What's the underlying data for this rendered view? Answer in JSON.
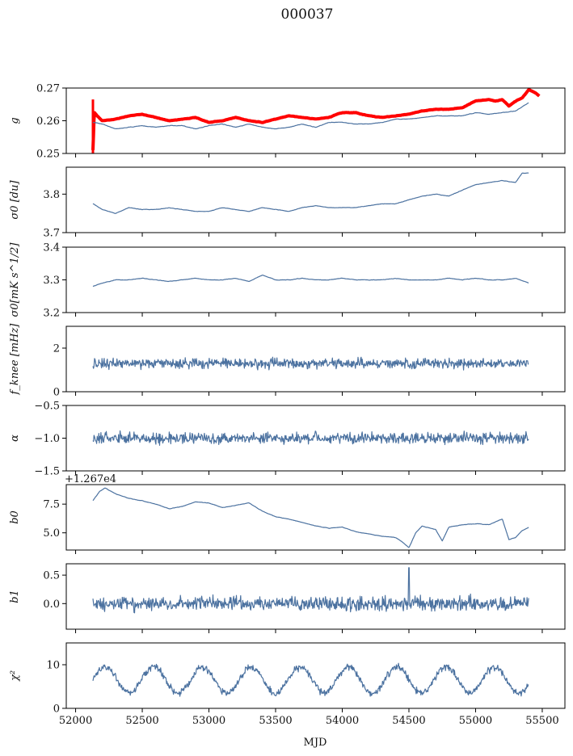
{
  "figure": {
    "title": "000037",
    "xlabel": "MJD",
    "xlim": [
      51930,
      55670
    ],
    "xticks": [
      52000,
      52500,
      53000,
      53500,
      54000,
      54500,
      55000,
      55500
    ],
    "xtick_labels": [
      "52000",
      "52500",
      "53000",
      "53500",
      "54000",
      "54500",
      "55000",
      "55500"
    ]
  },
  "colors": {
    "series": "#4c72a0",
    "highlight": "#ff0000",
    "axes": "#000000"
  },
  "chart_data": [
    {
      "type": "line",
      "ylabel": "g",
      "ylim": [
        0.25,
        0.27
      ],
      "yticks": [
        0.25,
        0.26,
        0.27
      ],
      "ytick_labels": [
        "0.25",
        "0.26",
        "0.27"
      ],
      "series": [
        {
          "color": "red",
          "x": [
            52130,
            52140,
            52160,
            52200,
            52300,
            52400,
            52500,
            52600,
            52700,
            52800,
            52900,
            53000,
            53100,
            53200,
            53300,
            53400,
            53500,
            53600,
            53700,
            53800,
            53900,
            54000,
            54100,
            54200,
            54300,
            54400,
            54500,
            54600,
            54700,
            54800,
            54900,
            55000,
            55100,
            55150,
            55200,
            55250,
            55300,
            55350,
            55400,
            55450,
            55480
          ],
          "y": [
            0.251,
            0.2625,
            0.2615,
            0.26,
            0.2605,
            0.2615,
            0.262,
            0.261,
            0.26,
            0.2605,
            0.261,
            0.2595,
            0.26,
            0.261,
            0.26,
            0.2595,
            0.2605,
            0.2615,
            0.261,
            0.2605,
            0.261,
            0.2625,
            0.2625,
            0.2615,
            0.261,
            0.2615,
            0.262,
            0.263,
            0.2635,
            0.2635,
            0.264,
            0.266,
            0.2665,
            0.266,
            0.2665,
            0.2645,
            0.266,
            0.267,
            0.2695,
            0.2685,
            0.2675
          ]
        },
        {
          "color": "blue",
          "x": [
            52130,
            52200,
            52300,
            52400,
            52500,
            52600,
            52700,
            52800,
            52900,
            53000,
            53100,
            53200,
            53300,
            53400,
            53500,
            53600,
            53700,
            53800,
            53900,
            54000,
            54100,
            54200,
            54300,
            54400,
            54500,
            54600,
            54700,
            54800,
            54900,
            55000,
            55100,
            55200,
            55300,
            55400
          ],
          "y": [
            0.2595,
            0.259,
            0.2575,
            0.258,
            0.2585,
            0.258,
            0.2585,
            0.2585,
            0.2575,
            0.2585,
            0.259,
            0.258,
            0.259,
            0.258,
            0.2575,
            0.258,
            0.259,
            0.258,
            0.2595,
            0.2595,
            0.259,
            0.259,
            0.2595,
            0.2605,
            0.2605,
            0.261,
            0.2615,
            0.2615,
            0.2615,
            0.2625,
            0.262,
            0.2625,
            0.263,
            0.2655
          ]
        }
      ]
    },
    {
      "type": "line",
      "ylabel": "σ0 [du]",
      "ylim": [
        3.7,
        3.87
      ],
      "yticks": [
        3.7,
        3.8
      ],
      "ytick_labels": [
        "3.7",
        "3.8"
      ],
      "series": [
        {
          "x": [
            52130,
            52200,
            52300,
            52400,
            52500,
            52600,
            52700,
            52800,
            52900,
            53000,
            53100,
            53200,
            53300,
            53400,
            53500,
            53600,
            53700,
            53800,
            53900,
            54000,
            54100,
            54200,
            54300,
            54400,
            54500,
            54600,
            54700,
            54800,
            54900,
            55000,
            55100,
            55200,
            55300,
            55350,
            55400
          ],
          "y": [
            3.775,
            3.76,
            3.75,
            3.765,
            3.76,
            3.76,
            3.765,
            3.76,
            3.755,
            3.755,
            3.765,
            3.76,
            3.755,
            3.765,
            3.76,
            3.755,
            3.765,
            3.77,
            3.765,
            3.765,
            3.765,
            3.77,
            3.775,
            3.775,
            3.785,
            3.795,
            3.8,
            3.795,
            3.81,
            3.825,
            3.83,
            3.835,
            3.83,
            3.855,
            3.855
          ]
        }
      ]
    },
    {
      "type": "line",
      "ylabel": "σ0[mK s^1/2]",
      "ylim": [
        3.2,
        3.4
      ],
      "yticks": [
        3.2,
        3.3,
        3.4
      ],
      "ytick_labels": [
        "3.2",
        "3.3",
        "3.4"
      ],
      "series": [
        {
          "x": [
            52130,
            52200,
            52300,
            52400,
            52500,
            52600,
            52700,
            52800,
            52900,
            53000,
            53100,
            53200,
            53300,
            53400,
            53500,
            53600,
            53700,
            53800,
            53900,
            54000,
            54100,
            54200,
            54300,
            54400,
            54500,
            54600,
            54700,
            54800,
            54900,
            55000,
            55100,
            55200,
            55300,
            55400
          ],
          "y": [
            3.28,
            3.29,
            3.3,
            3.3,
            3.305,
            3.3,
            3.295,
            3.3,
            3.305,
            3.3,
            3.3,
            3.305,
            3.295,
            3.315,
            3.3,
            3.3,
            3.305,
            3.3,
            3.3,
            3.305,
            3.3,
            3.3,
            3.3,
            3.305,
            3.3,
            3.3,
            3.3,
            3.305,
            3.3,
            3.305,
            3.3,
            3.3,
            3.305,
            3.29
          ]
        }
      ]
    },
    {
      "type": "line",
      "ylabel": "f_knee [mHz]",
      "ylim": [
        0,
        3
      ],
      "yticks": [
        0,
        2
      ],
      "ytick_labels": [
        "0",
        "2"
      ],
      "series": [
        {
          "x": [
            52130,
            55400
          ],
          "y": [
            1.3,
            1.3
          ],
          "noise_amplitude": 0.35
        }
      ]
    },
    {
      "type": "line",
      "ylabel": "α",
      "ylim": [
        -1.5,
        -0.5
      ],
      "yticks": [
        -1.5,
        -1.0,
        -0.5
      ],
      "ytick_labels": [
        "−1.5",
        "−1.0",
        "−0.5"
      ],
      "series": [
        {
          "x": [
            52130,
            55400
          ],
          "y": [
            -1.0,
            -1.0
          ],
          "noise_amplitude": 0.12
        }
      ]
    },
    {
      "type": "line",
      "ylabel": "b0",
      "offset_label": "+1.267e4",
      "ylim": [
        3.5,
        9.2
      ],
      "yticks": [
        5.0,
        7.5
      ],
      "ytick_labels": [
        "5.0",
        "7.5"
      ],
      "series": [
        {
          "x": [
            52130,
            52180,
            52220,
            52300,
            52400,
            52500,
            52600,
            52700,
            52800,
            52900,
            53000,
            53100,
            53200,
            53300,
            53400,
            53500,
            53600,
            53700,
            53800,
            53900,
            54000,
            54100,
            54200,
            54300,
            54400,
            54450,
            54500,
            54550,
            54600,
            54700,
            54750,
            54800,
            54900,
            55000,
            55100,
            55200,
            55250,
            55300,
            55350,
            55400
          ],
          "y": [
            7.8,
            8.6,
            8.9,
            8.4,
            8.0,
            7.8,
            7.5,
            7.1,
            7.3,
            7.7,
            7.6,
            7.2,
            7.4,
            7.6,
            6.9,
            6.4,
            6.2,
            5.9,
            5.6,
            5.4,
            5.5,
            5.1,
            4.9,
            4.7,
            4.6,
            4.2,
            3.7,
            5.0,
            5.6,
            5.3,
            4.3,
            5.5,
            5.7,
            5.8,
            5.7,
            6.2,
            4.4,
            4.6,
            5.2,
            5.5
          ]
        }
      ]
    },
    {
      "type": "line",
      "ylabel": "b1",
      "ylim": [
        -0.45,
        0.7
      ],
      "yticks": [
        0.0,
        0.5
      ],
      "ytick_labels": [
        "0.0",
        "0.5"
      ],
      "series": [
        {
          "x": [
            52130,
            55400
          ],
          "y": [
            0.0,
            0.0
          ],
          "noise_amplitude": 0.18,
          "spike": {
            "x": 54500,
            "y": 0.63
          }
        }
      ]
    },
    {
      "type": "line",
      "ylabel": "χ²",
      "ylim": [
        0,
        15
      ],
      "yticks": [
        0,
        10
      ],
      "ytick_labels": [
        "0",
        "10"
      ],
      "series": [
        {
          "x": [
            52130,
            55400
          ],
          "y": [
            6.5,
            6.5
          ],
          "oscillation_amplitude": 3,
          "oscillation_period_days": 365,
          "noise_amplitude": 1.2
        }
      ]
    }
  ]
}
